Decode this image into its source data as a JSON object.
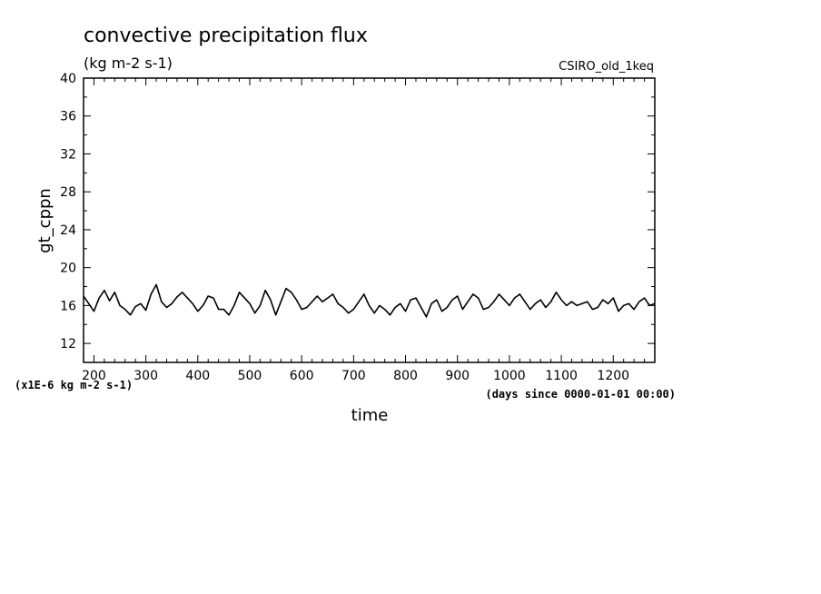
{
  "chart_data": {
    "type": "line",
    "title": "convective precipitation flux",
    "subtitle": "(kg m-2 s-1)",
    "dataset_label": "CSIRO_old_1keq",
    "xlabel": "time",
    "ylabel": "gt_cppn",
    "x_note": "(days since 0000-01-01 00:00)",
    "y_note": "(x1E-6 kg m-2 s-1)",
    "xlim": [
      180,
      1280
    ],
    "ylim": [
      10,
      40
    ],
    "x_ticks": [
      200,
      300,
      400,
      500,
      600,
      700,
      800,
      900,
      1000,
      1100,
      1200
    ],
    "y_ticks": [
      12,
      16,
      20,
      24,
      28,
      32,
      36,
      40
    ],
    "grid": false,
    "series": [
      {
        "x": [
          180,
          190,
          200,
          210,
          220,
          230,
          240,
          250,
          260,
          270,
          280,
          290,
          300,
          310,
          320,
          330,
          340,
          350,
          360,
          370,
          380,
          390,
          400,
          410,
          420,
          430,
          440,
          450,
          460,
          470,
          480,
          490,
          500,
          510,
          520,
          530,
          540,
          550,
          560,
          570,
          580,
          590,
          600,
          610,
          620,
          630,
          640,
          650,
          660,
          670,
          680,
          690,
          700,
          710,
          720,
          730,
          740,
          750,
          760,
          770,
          780,
          790,
          800,
          810,
          820,
          830,
          840,
          850,
          860,
          870,
          880,
          890,
          900,
          910,
          920,
          930,
          940,
          950,
          960,
          970,
          980,
          990,
          1000,
          1010,
          1020,
          1030,
          1040,
          1050,
          1060,
          1070,
          1080,
          1090,
          1100,
          1110,
          1120,
          1130,
          1140,
          1150,
          1160,
          1170,
          1180,
          1190,
          1200,
          1210,
          1220,
          1230,
          1240,
          1250,
          1260,
          1270,
          1280
        ],
        "values": [
          17.0,
          16.2,
          15.4,
          16.8,
          17.6,
          16.5,
          17.4,
          16.0,
          15.6,
          15.0,
          15.9,
          16.2,
          15.5,
          17.2,
          18.2,
          16.4,
          15.8,
          16.2,
          16.9,
          17.4,
          16.8,
          16.2,
          15.4,
          16.0,
          17.0,
          16.8,
          15.6,
          15.6,
          15.0,
          16.0,
          17.4,
          16.8,
          16.2,
          15.2,
          16.0,
          17.6,
          16.6,
          15.0,
          16.4,
          17.8,
          17.4,
          16.6,
          15.6,
          15.8,
          16.4,
          17.0,
          16.4,
          16.8,
          17.2,
          16.2,
          15.8,
          15.2,
          15.6,
          16.4,
          17.2,
          16.0,
          15.2,
          16.0,
          15.6,
          15.0,
          15.8,
          16.2,
          15.4,
          16.6,
          16.8,
          15.8,
          14.8,
          16.2,
          16.6,
          15.4,
          15.8,
          16.6,
          17.0,
          15.6,
          16.4,
          17.2,
          16.8,
          15.6,
          15.8,
          16.4,
          17.2,
          16.6,
          16.0,
          16.8,
          17.2,
          16.4,
          15.6,
          16.2,
          16.6,
          15.8,
          16.4,
          17.4,
          16.6,
          16.0,
          16.4,
          16.0,
          16.2,
          16.4,
          15.6,
          15.8,
          16.6,
          16.2,
          16.8,
          15.4,
          16.0,
          16.2,
          15.6,
          16.4,
          16.8,
          16.0,
          16.2
        ]
      }
    ]
  }
}
